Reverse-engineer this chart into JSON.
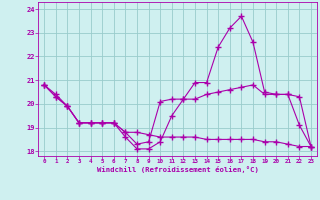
{
  "title": "",
  "xlabel": "Windchill (Refroidissement éolien,°C)",
  "bg_color": "#cff0f0",
  "line_color": "#aa00aa",
  "grid_color": "#99cccc",
  "hours": [
    0,
    1,
    2,
    3,
    4,
    5,
    6,
    7,
    8,
    9,
    10,
    11,
    12,
    13,
    14,
    15,
    16,
    17,
    18,
    19,
    20,
    21,
    22,
    23
  ],
  "line1": [
    20.8,
    20.4,
    19.9,
    19.2,
    19.2,
    19.2,
    19.2,
    18.6,
    18.1,
    18.1,
    18.4,
    19.5,
    20.2,
    20.9,
    20.9,
    22.4,
    23.2,
    23.7,
    22.6,
    20.5,
    20.4,
    20.4,
    19.1,
    18.2
  ],
  "line2": [
    20.8,
    20.3,
    19.9,
    19.2,
    19.2,
    19.2,
    19.2,
    18.8,
    18.3,
    18.4,
    20.1,
    20.2,
    20.2,
    20.2,
    20.4,
    20.5,
    20.6,
    20.7,
    20.8,
    20.4,
    20.4,
    20.4,
    20.3,
    18.2
  ],
  "line3": [
    20.8,
    20.3,
    19.9,
    19.2,
    19.2,
    19.2,
    19.2,
    18.8,
    18.8,
    18.7,
    18.6,
    18.6,
    18.6,
    18.6,
    18.5,
    18.5,
    18.5,
    18.5,
    18.5,
    18.4,
    18.4,
    18.3,
    18.2,
    18.2
  ],
  "ylim": [
    17.8,
    24.3
  ],
  "yticks": [
    18,
    19,
    20,
    21,
    22,
    23,
    24
  ],
  "xlim": [
    -0.5,
    23.5
  ]
}
